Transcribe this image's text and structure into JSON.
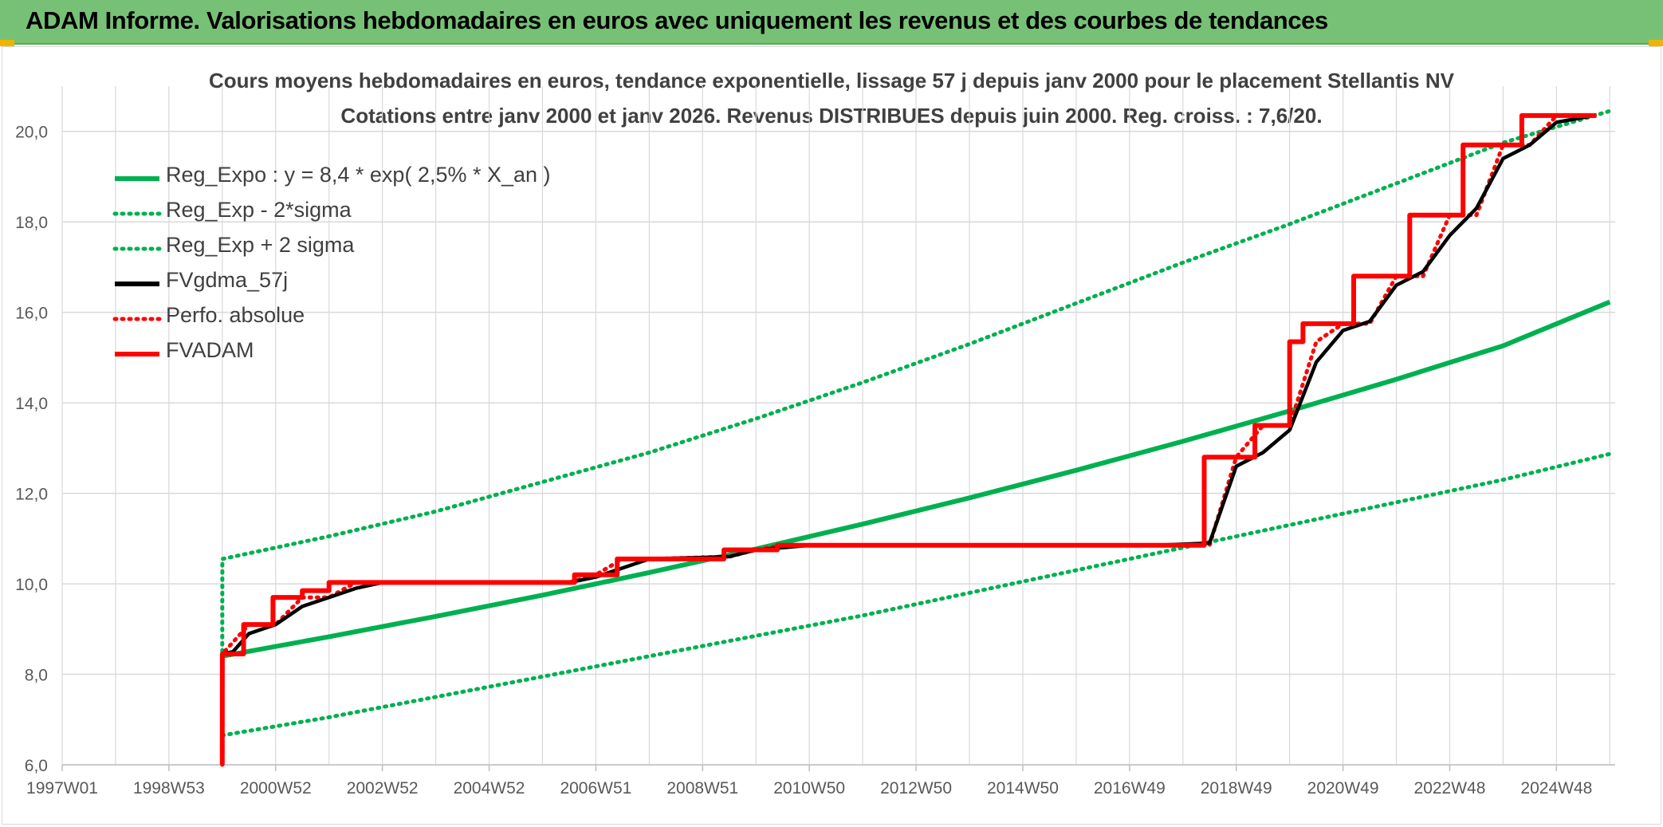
{
  "header": {
    "title": "ADAM Informe. Valorisations hebdomadaires en euros avec uniquement les revenus et des courbes de tendances"
  },
  "chart_data": {
    "type": "line",
    "title": "Cours moyens hebdomadaires en euros, tendance exponentielle, lissage 57 j depuis janv 2000 pour le placement Stellantis NV",
    "subtitle": "Cotations entre janv 2000 et janv 2026. Revenus DISTRIBUES depuis juin 2000. Reg. croiss. : 7,6/20.",
    "xlabel": "",
    "ylabel": "",
    "x_ticks": [
      "1997W01",
      "1998W53",
      "2000W52",
      "2002W52",
      "2004W52",
      "2006W51",
      "2008W51",
      "2010W50",
      "2012W50",
      "2014W50",
      "2016W49",
      "2018W49",
      "2020W49",
      "2022W48",
      "2024W48"
    ],
    "x_range": [
      1997.0,
      2026.1
    ],
    "ylim": [
      6,
      21
    ],
    "y_ticks": [
      "6,0",
      "8,0",
      "10,0",
      "12,0",
      "14,0",
      "16,0",
      "18,0",
      "20,0"
    ],
    "y_tick_values": [
      6,
      8,
      10,
      12,
      14,
      16,
      18,
      20
    ],
    "grid": true,
    "legend_position": "top-left",
    "series": [
      {
        "name": "Reg_Expo : y = 8,4 * exp( 2,5% *  X_an )",
        "color": "#00b050",
        "style": "solid",
        "x": [
          2000.0,
          2002.0,
          2004.0,
          2006.0,
          2008.0,
          2010.0,
          2012.0,
          2014.0,
          2016.0,
          2018.0,
          2020.0,
          2022.0,
          2024.0,
          2026.0
        ],
        "y": [
          8.4,
          8.83,
          9.28,
          9.75,
          10.25,
          10.77,
          11.32,
          11.9,
          12.51,
          13.15,
          13.82,
          14.52,
          15.26,
          16.23
        ]
      },
      {
        "name": "Reg_Exp - 2*sigma",
        "color": "#00b050",
        "style": "dotted",
        "x": [
          2000.0,
          2002.0,
          2004.0,
          2006.0,
          2008.0,
          2010.0,
          2012.0,
          2014.0,
          2016.0,
          2018.0,
          2020.0,
          2022.0,
          2024.0,
          2026.0
        ],
        "y": [
          6.65,
          7.05,
          7.5,
          7.95,
          8.4,
          8.85,
          9.3,
          9.8,
          10.3,
          10.8,
          11.3,
          11.8,
          12.3,
          12.87
        ]
      },
      {
        "name": "Reg_Exp + 2 sigma",
        "color": "#00b050",
        "style": "dotted",
        "x": [
          2000.0,
          2000.001,
          2002.0,
          2004.0,
          2006.0,
          2008.0,
          2010.0,
          2012.0,
          2014.0,
          2016.0,
          2018.0,
          2020.0,
          2022.0,
          2024.0,
          2026.0
        ],
        "y": [
          8.5,
          10.55,
          11.05,
          11.6,
          12.25,
          12.9,
          13.65,
          14.45,
          15.3,
          16.2,
          17.1,
          17.95,
          18.85,
          19.75,
          20.45
        ]
      },
      {
        "name": "FVgdma_57j",
        "color": "#000000",
        "style": "solid",
        "x": [
          2000.0,
          2000.2,
          2000.5,
          2001.0,
          2001.5,
          2002.0,
          2002.5,
          2003.0,
          2006.5,
          2007.0,
          2007.5,
          2008.0,
          2009.5,
          2010.0,
          2010.5,
          2011.0,
          2017.5,
          2018.5,
          2019.0,
          2019.5,
          2020.0,
          2020.5,
          2021.0,
          2021.5,
          2022.0,
          2022.5,
          2023.0,
          2023.5,
          2024.0,
          2024.5,
          2025.0,
          2025.7
        ],
        "y": [
          8.45,
          8.5,
          8.9,
          9.1,
          9.5,
          9.7,
          9.9,
          10.03,
          10.03,
          10.15,
          10.35,
          10.55,
          10.6,
          10.75,
          10.8,
          10.85,
          10.85,
          10.9,
          12.6,
          12.9,
          13.4,
          14.9,
          15.6,
          15.8,
          16.6,
          16.9,
          17.7,
          18.3,
          19.4,
          19.7,
          20.2,
          20.35
        ]
      },
      {
        "name": "Perfo. absolue",
        "color": "#ff0000",
        "style": "dotted",
        "x": [
          2000.0,
          2000.001,
          2000.5,
          2001.0,
          2001.5,
          2002.0,
          2002.5,
          2003.0,
          2006.5,
          2007.0,
          2007.5,
          2008.0,
          2009.5,
          2010.0,
          2010.5,
          2011.0,
          2017.5,
          2018.5,
          2019.0,
          2019.5,
          2020.0,
          2020.5,
          2021.0,
          2021.5,
          2022.0,
          2022.5,
          2023.0,
          2023.5,
          2024.0,
          2024.5,
          2025.0,
          2025.7
        ],
        "y": [
          6.0,
          8.45,
          9.1,
          9.1,
          9.7,
          9.7,
          10.03,
          10.03,
          10.03,
          10.2,
          10.55,
          10.55,
          10.6,
          10.75,
          10.85,
          10.85,
          10.85,
          10.85,
          12.8,
          13.5,
          13.5,
          15.35,
          15.75,
          15.75,
          16.8,
          16.8,
          18.15,
          18.15,
          19.7,
          19.7,
          20.35,
          20.35
        ]
      },
      {
        "name": "FVADAM",
        "color": "#ff0000",
        "style": "solid",
        "x": [
          2000.0,
          2000.001,
          2000.4,
          2000.4,
          2000.95,
          2000.95,
          2001.5,
          2001.5,
          2002.0,
          2002.0,
          2006.6,
          2006.6,
          2007.4,
          2007.4,
          2009.4,
          2009.4,
          2010.4,
          2010.4,
          2018.4,
          2018.4,
          2019.35,
          2019.35,
          2020.0,
          2020.0,
          2020.25,
          2020.25,
          2021.2,
          2021.2,
          2022.25,
          2022.25,
          2023.25,
          2023.25,
          2024.35,
          2024.35,
          2025.75
        ],
        "y": [
          6.0,
          8.45,
          8.45,
          9.1,
          9.1,
          9.7,
          9.7,
          9.85,
          9.85,
          10.03,
          10.03,
          10.2,
          10.2,
          10.55,
          10.55,
          10.75,
          10.75,
          10.85,
          10.85,
          12.8,
          12.8,
          13.5,
          13.5,
          15.35,
          15.35,
          15.75,
          15.75,
          16.8,
          16.8,
          18.15,
          18.15,
          19.7,
          19.7,
          20.35,
          20.35
        ]
      }
    ]
  }
}
